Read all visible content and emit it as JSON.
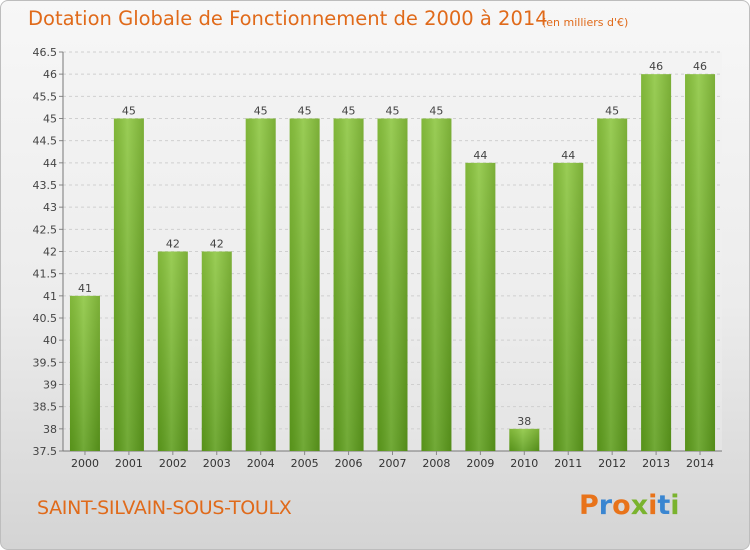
{
  "header": {
    "title": "Dotation Globale de Fonctionnement de 2000 à 2014",
    "unit": "(en milliers d'€)"
  },
  "footer": {
    "city": "SAINT-SILVAIN-SOUS-TOULX",
    "logo": {
      "letters": [
        "P",
        "r",
        "o",
        "x",
        "i",
        "t",
        "i"
      ],
      "colors": [
        "#e8731a",
        "#3a86d1",
        "#e8731a",
        "#7ab32e",
        "#e8731a",
        "#3a86d1",
        "#7ab32e"
      ]
    }
  },
  "chart_data": {
    "type": "bar",
    "title": "Dotation Globale de Fonctionnement de 2000 à 2014",
    "subtitle": "(en milliers d'€)",
    "categories": [
      "2000",
      "2001",
      "2002",
      "2003",
      "2004",
      "2005",
      "2006",
      "2007",
      "2008",
      "2009",
      "2010",
      "2011",
      "2012",
      "2013",
      "2014"
    ],
    "values": [
      41,
      45,
      42,
      42,
      45,
      45,
      45,
      45,
      45,
      44,
      38,
      44,
      45,
      46,
      46
    ],
    "data_labels": [
      "41",
      "45",
      "42",
      "42",
      "45",
      "45",
      "45",
      "45",
      "45",
      "44",
      "38",
      "44",
      "45",
      "46",
      "46"
    ],
    "ylim": [
      37.5,
      46.5
    ],
    "yticks": [
      "37.5",
      "38",
      "38.5",
      "39",
      "39.5",
      "40",
      "40.5",
      "41",
      "41.5",
      "42",
      "42.5",
      "43",
      "43.5",
      "44",
      "44.5",
      "45",
      "45.5",
      "46",
      "46.5"
    ],
    "grid": true,
    "bar_color": "#8cc63f",
    "bar_color_dark": "#5e9e1c"
  }
}
